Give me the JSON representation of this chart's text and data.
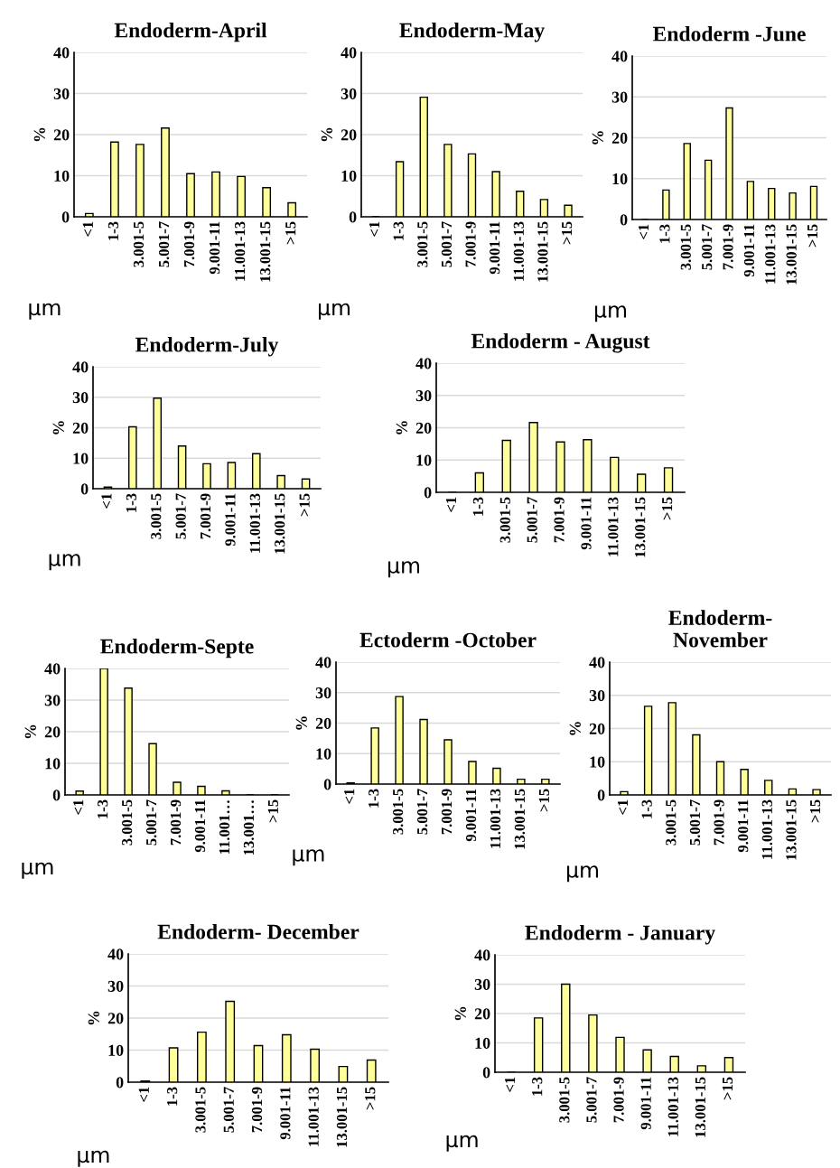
{
  "chart_data": [
    {
      "type": "bar",
      "title": "Endoderm-April",
      "xlabel": "µm",
      "ylabel": "%",
      "categories": [
        "<1",
        "1-3",
        "3.001-5",
        "5.001-7",
        "7.001-9",
        "9.001-11",
        "11.001-13",
        "13.001-15",
        ">15"
      ],
      "values": [
        0.8,
        18.2,
        17.6,
        21.6,
        10.5,
        10.9,
        9.8,
        7.1,
        3.4
      ],
      "color": "#ffff99",
      "ylim": [
        0,
        40
      ],
      "yticks": [
        0,
        10,
        20,
        30,
        40
      ],
      "grid": "y"
    },
    {
      "type": "bar",
      "title": "Endoderm-May",
      "xlabel": "µm",
      "ylabel": "%",
      "categories": [
        "<1",
        "1-3",
        "3.001-5",
        "5.001-7",
        "7.001-9",
        "9.001-11",
        "11.001-13",
        "13.001-15",
        ">15"
      ],
      "values": [
        0,
        13.4,
        29.1,
        17.6,
        15.3,
        11.0,
        6.2,
        4.2,
        2.8
      ],
      "color": "#ffff99",
      "ylim": [
        0,
        40
      ],
      "yticks": [
        0,
        10,
        20,
        30,
        40
      ],
      "grid": "y"
    },
    {
      "type": "bar",
      "title": "Endoderm -June",
      "xlabel": "µm",
      "ylabel": "%",
      "categories": [
        "<1",
        "1-3",
        "3.001-5",
        "5.001-7",
        "7.001-9",
        "9.001-11",
        "11.001-13",
        "13.001-15",
        ">15"
      ],
      "values": [
        0,
        7.2,
        18.6,
        14.5,
        27.3,
        9.3,
        7.6,
        6.5,
        8.1
      ],
      "color": "#ffff99",
      "ylim": [
        0,
        40
      ],
      "yticks": [
        0,
        10,
        20,
        30,
        40
      ],
      "grid": "y"
    },
    {
      "type": "bar",
      "title": "Endoderm-July",
      "xlabel": "µm",
      "ylabel": "%",
      "categories": [
        "<1",
        "1-3",
        "3.001-5",
        "5.001-7",
        "7.001-9",
        "9.001-11",
        "11.001-13",
        "13.001-15",
        ">15"
      ],
      "values": [
        0.5,
        20.3,
        29.7,
        14.0,
        8.2,
        8.6,
        11.5,
        4.3,
        3.2
      ],
      "color": "#ffff99",
      "ylim": [
        0,
        40
      ],
      "yticks": [
        0,
        10,
        20,
        30,
        40
      ],
      "grid": "y"
    },
    {
      "type": "bar",
      "title": "Endoderm - August",
      "xlabel": "µm",
      "ylabel": "%",
      "categories": [
        "<1",
        "1-3",
        "3.001-5",
        "5.001-7",
        "7.001-9",
        "9.001-11",
        "11.001-13",
        "13.001-15",
        ">15"
      ],
      "values": [
        0,
        6.0,
        16.1,
        21.6,
        15.6,
        16.3,
        10.8,
        5.6,
        7.6
      ],
      "color": "#ffff99",
      "ylim": [
        0,
        40
      ],
      "yticks": [
        0,
        10,
        20,
        30,
        40
      ],
      "grid": "y"
    },
    {
      "type": "bar",
      "title": "Endoderm-Septe",
      "xlabel": "µm",
      "ylabel": "%",
      "categories": [
        "<1",
        "1-3",
        "3.001-5",
        "5.001-7",
        "7.001-9",
        "9.001-11",
        "11.001…",
        "13.001…",
        ">15"
      ],
      "values": [
        1.2,
        40,
        33.8,
        16.2,
        4.0,
        2.7,
        1.3,
        0,
        0
      ],
      "color": "#ffff99",
      "ylim": [
        0,
        40
      ],
      "yticks": [
        0,
        10,
        20,
        30,
        40
      ],
      "grid": "y"
    },
    {
      "type": "bar",
      "title": "Ectoderm -October",
      "xlabel": "µm",
      "ylabel": "%",
      "categories": [
        "<1",
        "1-3",
        "3.001-5",
        "5.001-7",
        "7.001-9",
        "9.001-11",
        "11.001-13",
        "13.001-15",
        ">15"
      ],
      "values": [
        0.4,
        18.4,
        28.7,
        21.2,
        14.5,
        7.4,
        5.2,
        1.6,
        1.6
      ],
      "color": "#ffff99",
      "ylim": [
        0,
        40
      ],
      "yticks": [
        0,
        10,
        20,
        30,
        40
      ],
      "grid": "y"
    },
    {
      "type": "bar",
      "title": "Endoderm-\nNovember",
      "xlabel": "µm",
      "ylabel": "%",
      "categories": [
        "<1",
        "1-3",
        "3.001-5",
        "5.001-7",
        "7.001-9",
        "9.001-11",
        "11.001-13",
        "13.001-15",
        ">15"
      ],
      "values": [
        1.0,
        26.7,
        27.8,
        18.1,
        10.0,
        7.7,
        4.4,
        1.8,
        1.6
      ],
      "color": "#ffff99",
      "ylim": [
        0,
        40
      ],
      "yticks": [
        0,
        10,
        20,
        30,
        40
      ],
      "grid": "y"
    },
    {
      "type": "bar",
      "title": "Endoderm- December",
      "xlabel": "µm",
      "ylabel": "%",
      "categories": [
        "<1",
        "1-3",
        "3.001-5",
        "5.001-7",
        "7.001-9",
        "9.001-11",
        "11.001-13",
        "13.001-15",
        ">15"
      ],
      "values": [
        0.4,
        10.7,
        15.6,
        25.2,
        11.4,
        14.8,
        10.3,
        4.9,
        6.9
      ],
      "color": "#ffff99",
      "ylim": [
        0,
        40
      ],
      "yticks": [
        0,
        10,
        20,
        30,
        40
      ],
      "grid": "y"
    },
    {
      "type": "bar",
      "title": "Endoderm - January",
      "xlabel": "µm",
      "ylabel": "%",
      "categories": [
        "<1",
        "1-3",
        "3.001-5",
        "5.001-7",
        "7.001-9",
        "9.001-11",
        "11.001-13",
        "13.001-15",
        ">15"
      ],
      "values": [
        0,
        18.5,
        30.0,
        19.5,
        11.9,
        7.6,
        5.4,
        2.2,
        5.0
      ],
      "color": "#ffff99",
      "ylim": [
        0,
        40
      ],
      "yticks": [
        0,
        10,
        20,
        30,
        40
      ],
      "grid": "y"
    }
  ]
}
